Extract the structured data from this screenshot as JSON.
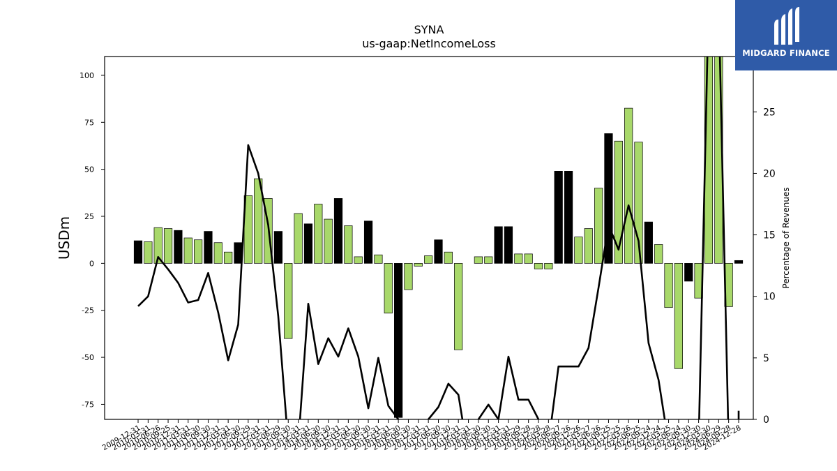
{
  "chart_data": {
    "type": "bar",
    "title": "SYNA",
    "subtitle": "us-gaap:NetIncomeLoss",
    "ylabel": "USDm",
    "ylabel_right": "Percentage of Revenues",
    "ylim": [
      -83,
      110
    ],
    "ylim_right": [
      0,
      29.5
    ],
    "yticks": [
      -75,
      -50,
      -25,
      0,
      25,
      50,
      75,
      100
    ],
    "yticks_right": [
      0,
      5,
      10,
      15,
      20,
      25
    ],
    "grid": false,
    "colors": {
      "positive_quarter": "#a8d86a",
      "annual": "#000000",
      "line": "#000000"
    },
    "x": [
      "2009-12-31",
      "2010-03-31",
      "2010-06-26",
      "2010-09-25",
      "2010-12-31",
      "2011-03-31",
      "2011-06-30",
      "2011-09-30",
      "2011-12-31",
      "2012-03-31",
      "2012-06-30",
      "2012-09-29",
      "2012-12-31",
      "2013-03-31",
      "2013-06-29",
      "2013-09-30",
      "2013-12-31",
      "2014-03-31",
      "2014-06-30",
      "2014-09-30",
      "2014-12-31",
      "2015-03-31",
      "2015-06-30",
      "2015-09-30",
      "2015-12-31",
      "2016-03-31",
      "2016-06-30",
      "2016-09-30",
      "2016-12-31",
      "2017-03-31",
      "2017-06-30",
      "2017-09-30",
      "2017-12-31",
      "2018-03-31",
      "2018-06-30",
      "2018-09-30",
      "2018-12-31",
      "2019-03-31",
      "2019-06-29",
      "2019-09-28",
      "2019-12-28",
      "2020-03-28",
      "2020-06-27",
      "2020-09-26",
      "2020-12-26",
      "2021-03-27",
      "2021-06-26",
      "2021-09-25",
      "2021-12-25",
      "2022-03-26",
      "2022-06-25",
      "2022-09-24",
      "2022-12-24",
      "2023-03-25",
      "2023-06-24",
      "2023-09-30",
      "2023-12-30",
      "2024-03-30",
      "2024-06-29",
      "2024-09-28",
      "2024-12-28"
    ],
    "xtick_labels": [
      "2009-12-31",
      "2010-03-31",
      "2010-06-26",
      "2010-09-25",
      "2010-12-31",
      "2011-03-31",
      "2011-06-30",
      "2011-09-30",
      "2011-12-31",
      "2012-03-31",
      "2012-06-30",
      "2012-09-29",
      "2012-12-31",
      "2013-03-31",
      "2013-06-29",
      "2013-09-30",
      "2013-12-31",
      "2014-03-31",
      "2014-06-30",
      "2014-09-30",
      "2014-12-31",
      "2015-03-31",
      "2015-06-30",
      "2015-09-30",
      "2015-12-31",
      "2016-03-31",
      "2016-06-30",
      "2016-09-30",
      "2016-12-31",
      "2017-03-31",
      "2017-06-30",
      "2017-09-30",
      "2017-12-31",
      "2018-03-31",
      "2018-06-30",
      "2018-09-30",
      "2018-12-31",
      "2019-03-31",
      "2019-06-29",
      "2019-09-28",
      "2019-12-28",
      "2020-03-28",
      "2020-06-27",
      "2020-09-26",
      "2020-12-26",
      "2021-03-27",
      "2021-06-26",
      "2021-09-25",
      "2021-12-25",
      "2022-03-26",
      "2022-06-25",
      "2022-09-24",
      "2022-12-24",
      "2023-03-25",
      "2023-06-24",
      "2023-09-30",
      "2023-12-30",
      "2024-03-30",
      "2024-06-29",
      "2024-09-28",
      "2024-12-28"
    ],
    "series": [
      {
        "type": "bar",
        "values": [
          12,
          11.5,
          19,
          18.5,
          17.5,
          13.5,
          12.5,
          17,
          11,
          6,
          11,
          36,
          45,
          34.5,
          17,
          -40,
          26.5,
          21,
          31.5,
          23.5,
          34.5,
          20,
          3.5,
          22.5,
          4.5,
          -26.5,
          -82,
          -14,
          -1.5,
          4,
          12.5,
          6,
          -46,
          null,
          3.5,
          3.5,
          19.5,
          19.5,
          5,
          5,
          -3,
          -3,
          49,
          49,
          14,
          18.5,
          40,
          69,
          65,
          82.5,
          64.5,
          22,
          10,
          -23.5,
          -56,
          -9.5,
          -18.5,
          110,
          110,
          -23,
          1.5
        ],
        "annual": [
          true,
          false,
          false,
          false,
          true,
          false,
          false,
          true,
          false,
          false,
          true,
          false,
          false,
          false,
          true,
          false,
          false,
          true,
          false,
          false,
          true,
          false,
          false,
          true,
          false,
          false,
          true,
          false,
          false,
          false,
          true,
          false,
          false,
          false,
          false,
          false,
          true,
          true,
          false,
          false,
          false,
          false,
          true,
          true,
          false,
          false,
          false,
          true,
          false,
          false,
          false,
          true,
          false,
          false,
          false,
          true,
          false,
          false,
          false,
          false,
          true
        ]
      },
      {
        "type": "line",
        "axis": "right",
        "values": [
          9.2,
          10,
          13.2,
          12.2,
          11.1,
          9.5,
          9.7,
          11.9,
          8.7,
          4.8,
          7.7,
          22.3,
          20,
          15.8,
          8.4,
          -2,
          -2,
          9.4,
          4.5,
          6.6,
          5.1,
          7.4,
          5.1,
          0.9,
          5,
          1.1,
          0,
          -1,
          -1,
          0,
          1,
          2.9,
          2,
          -3,
          0,
          1.2,
          0,
          5.1,
          1.6,
          1.6,
          0,
          -2,
          4.3,
          4.3,
          4.3,
          5.8,
          10.7,
          15.8,
          13.8,
          17.4,
          14.5,
          6.2,
          3.2,
          -2,
          -2,
          -2,
          -2,
          34,
          34,
          -2,
          0.7
        ]
      }
    ]
  },
  "logo": {
    "text": "MIDGARD FINANCE"
  }
}
